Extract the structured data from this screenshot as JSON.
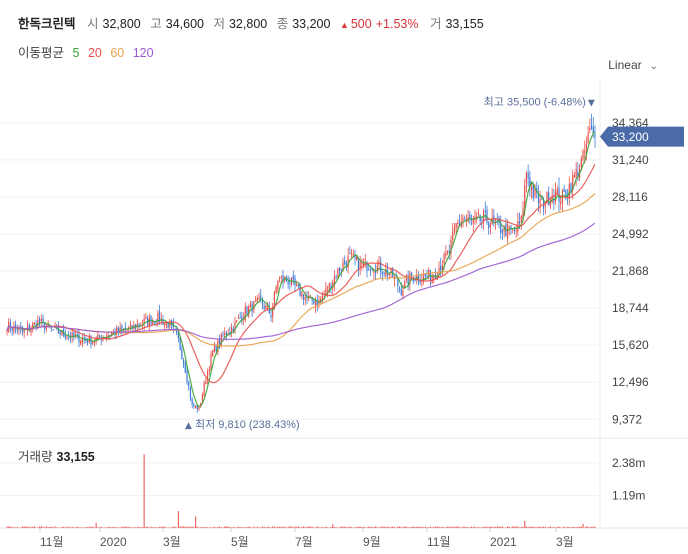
{
  "stock": {
    "name": "한독크린텍",
    "open_label": "시",
    "open": "32,800",
    "high_label": "고",
    "high": "34,600",
    "low_label": "저",
    "low": "32,800",
    "close_label": "종",
    "close": "33,200",
    "change_arrow": "▲",
    "change": "500",
    "change_pct": "+1.53%",
    "volume_label": "거",
    "volume": "33,155"
  },
  "moving_average": {
    "label": "이동평균",
    "periods": [
      {
        "value": "5",
        "color": "#3aa335"
      },
      {
        "value": "20",
        "color": "#e8504a"
      },
      {
        "value": "60",
        "color": "#e8a24a"
      },
      {
        "value": "120",
        "color": "#9b59d0"
      }
    ]
  },
  "scale_select": {
    "value": "Linear",
    "icon": "chevron-down-icon"
  },
  "volume_panel": {
    "label": "거래량",
    "value": "33,155",
    "ticks": [
      "2.38m",
      "1.19m"
    ],
    "tick_values": [
      2380000,
      1190000
    ],
    "max": 3000000
  },
  "chart_data": {
    "type": "candlestick",
    "price_axis": {
      "ticks": [
        "34,364",
        "31,240",
        "28,116",
        "24,992",
        "21,868",
        "18,744",
        "15,620",
        "12,496",
        "9,372"
      ],
      "tick_values": [
        34364,
        31240,
        28116,
        24992,
        21868,
        18744,
        15620,
        12496,
        9372
      ],
      "range": [
        8300,
        37800
      ]
    },
    "current_price": {
      "label": "33,200",
      "value": 33200
    },
    "high_annotation": {
      "text": "최고 35,500 (-6.48%)",
      "arrow": "▼",
      "value": 35500
    },
    "low_annotation": {
      "text": "최저 9,810 (238.43%)",
      "arrow": "▲",
      "value": 9810
    },
    "x_labels": [
      "11월",
      "2020",
      "3월",
      "5월",
      "7월",
      "9월",
      "11월",
      "2021",
      "3월"
    ],
    "up_color": "#e8504a",
    "down_color": "#3d7bd9",
    "volume_color": "#e8504a",
    "close_anchors": [
      {
        "day": 0,
        "close": 17300
      },
      {
        "day": 10,
        "close": 16700
      },
      {
        "day": 18,
        "close": 17600
      },
      {
        "day": 28,
        "close": 16800
      },
      {
        "day": 38,
        "close": 16300
      },
      {
        "day": 50,
        "close": 16000
      },
      {
        "day": 60,
        "close": 16600
      },
      {
        "day": 72,
        "close": 17000
      },
      {
        "day": 80,
        "close": 17600
      },
      {
        "day": 88,
        "close": 17900
      },
      {
        "day": 95,
        "close": 17300
      },
      {
        "day": 100,
        "close": 16000
      },
      {
        "day": 104,
        "close": 13600
      },
      {
        "day": 108,
        "close": 10500
      },
      {
        "day": 112,
        "close": 10300
      },
      {
        "day": 116,
        "close": 12800
      },
      {
        "day": 120,
        "close": 15100
      },
      {
        "day": 126,
        "close": 16400
      },
      {
        "day": 132,
        "close": 17200
      },
      {
        "day": 140,
        "close": 18600
      },
      {
        "day": 148,
        "close": 19300
      },
      {
        "day": 154,
        "close": 18200
      },
      {
        "day": 158,
        "close": 21200
      },
      {
        "day": 164,
        "close": 21100
      },
      {
        "day": 170,
        "close": 20200
      },
      {
        "day": 176,
        "close": 19400
      },
      {
        "day": 182,
        "close": 19300
      },
      {
        "day": 188,
        "close": 20600
      },
      {
        "day": 194,
        "close": 22100
      },
      {
        "day": 200,
        "close": 23000
      },
      {
        "day": 206,
        "close": 22400
      },
      {
        "day": 212,
        "close": 22400
      },
      {
        "day": 218,
        "close": 22100
      },
      {
        "day": 224,
        "close": 21600
      },
      {
        "day": 230,
        "close": 20300
      },
      {
        "day": 236,
        "close": 21400
      },
      {
        "day": 242,
        "close": 21300
      },
      {
        "day": 248,
        "close": 21500
      },
      {
        "day": 254,
        "close": 22600
      },
      {
        "day": 258,
        "close": 23500
      },
      {
        "day": 262,
        "close": 25700
      },
      {
        "day": 266,
        "close": 26300
      },
      {
        "day": 272,
        "close": 25900
      },
      {
        "day": 278,
        "close": 26300
      },
      {
        "day": 284,
        "close": 25800
      },
      {
        "day": 290,
        "close": 25300
      },
      {
        "day": 296,
        "close": 25200
      },
      {
        "day": 300,
        "close": 26000
      },
      {
        "day": 303,
        "close": 30300
      },
      {
        "day": 307,
        "close": 28400
      },
      {
        "day": 312,
        "close": 27500
      },
      {
        "day": 318,
        "close": 28400
      },
      {
        "day": 324,
        "close": 28000
      },
      {
        "day": 330,
        "close": 29500
      },
      {
        "day": 336,
        "close": 31300
      },
      {
        "day": 340,
        "close": 33600
      },
      {
        "day": 343,
        "close": 33200
      }
    ],
    "volume_spikes": [
      {
        "day": 52,
        "value": 180000
      },
      {
        "day": 80,
        "value": 2700000
      },
      {
        "day": 100,
        "value": 620000
      },
      {
        "day": 110,
        "value": 420000
      },
      {
        "day": 190,
        "value": 140000
      },
      {
        "day": 302,
        "value": 260000
      },
      {
        "day": 336,
        "value": 150000
      }
    ]
  }
}
